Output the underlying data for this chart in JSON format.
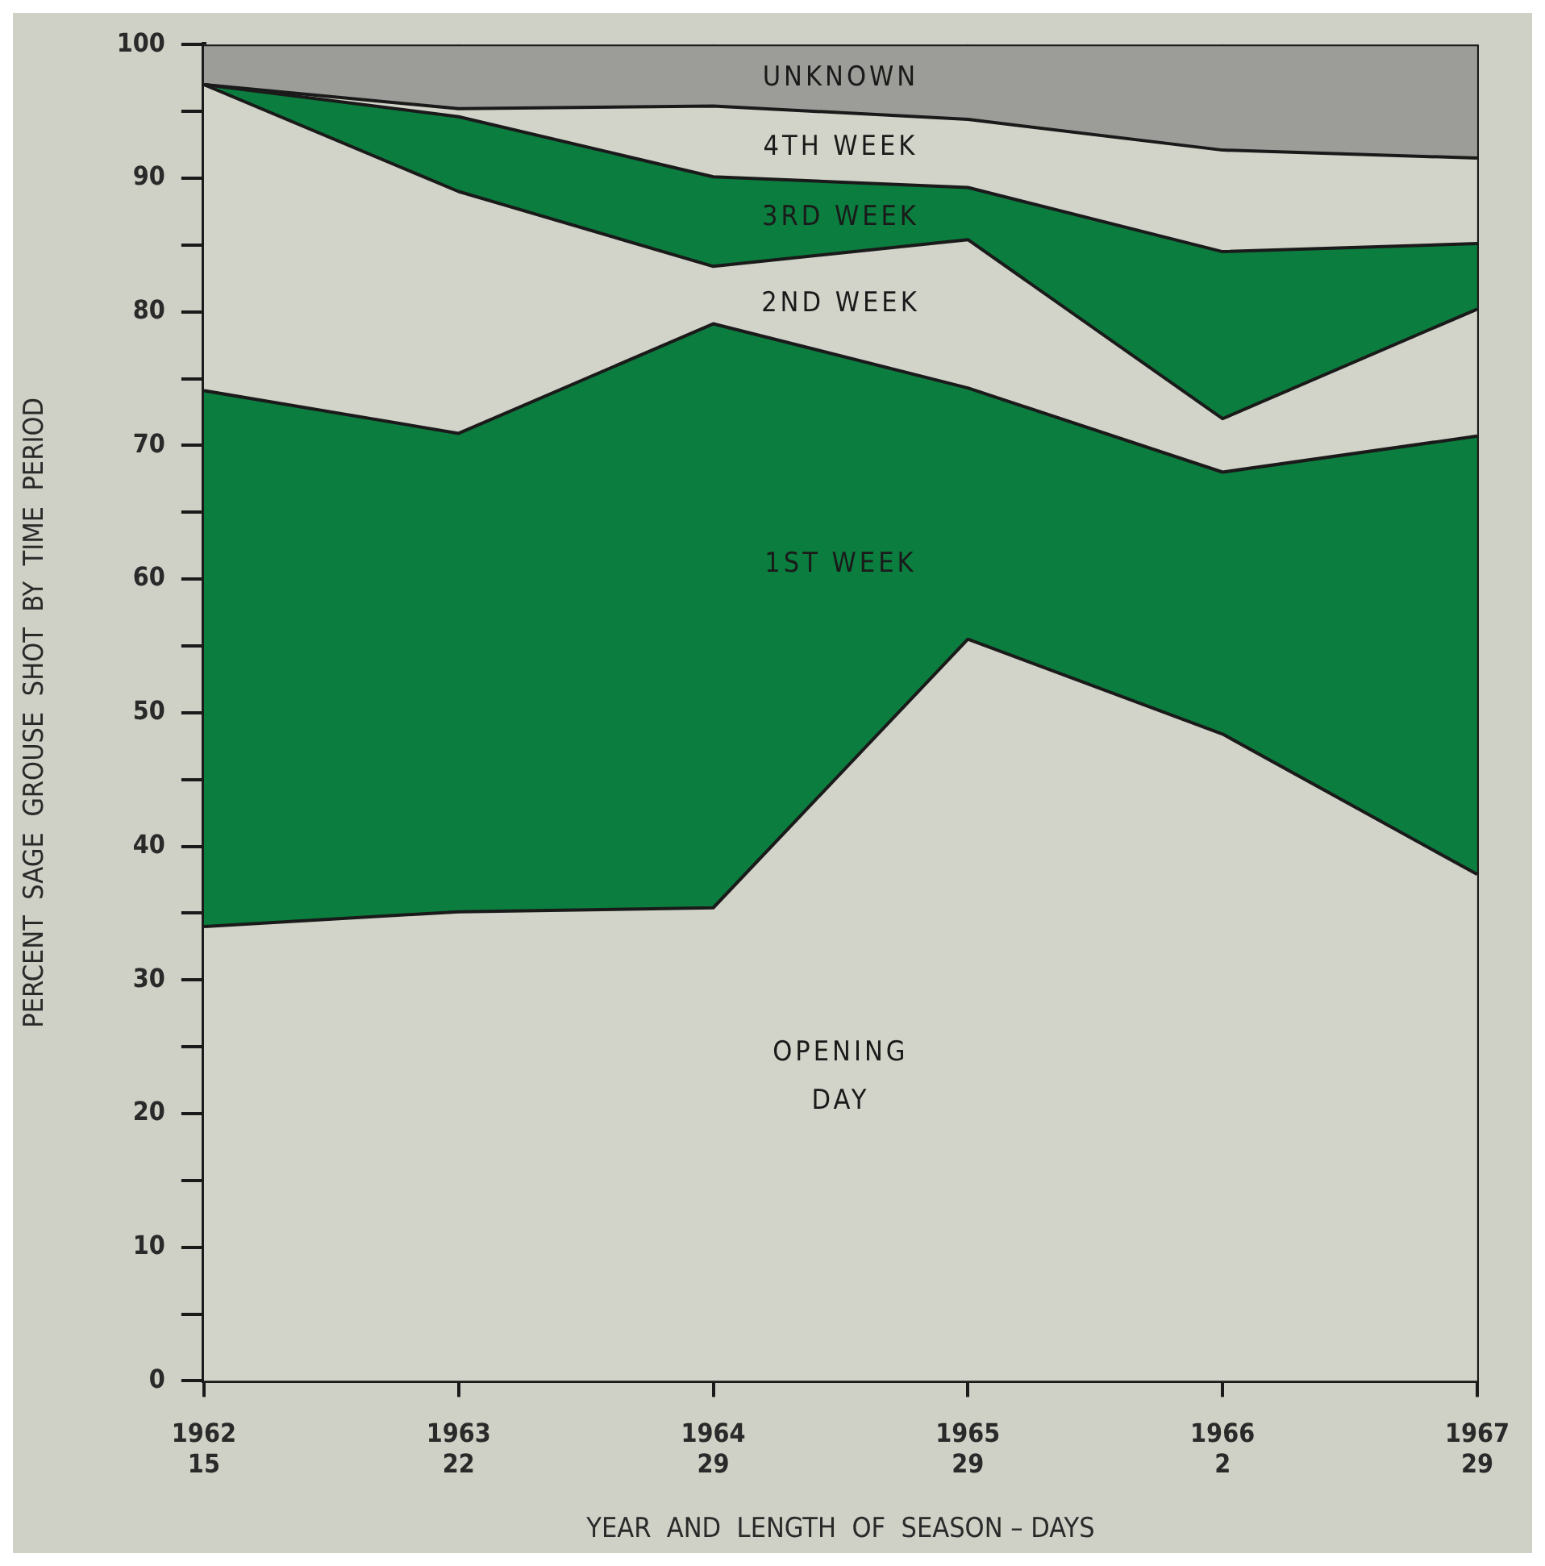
{
  "chart_data": {
    "type": "area",
    "stacked": true,
    "xlabel": "YEAR  AND  LENGTH  OF  SEASON – DAYS",
    "ylabel": "PERCENT  SAGE  GROUSE  SHOT  BY  TIME  PERIOD",
    "categories": [
      "1962\n15",
      "1963\n22",
      "1964\n29",
      "1965\n29",
      "1966\n2",
      "1967\n29"
    ],
    "series": [
      {
        "name": "OPENING DAY",
        "color": "#d2d4c9",
        "values": [
          34,
          35.1,
          35.4,
          55.5,
          48.4,
          37.9
        ]
      },
      {
        "name": "1ST WEEK",
        "color": "#0b7d3e",
        "values": [
          40.1,
          35.8,
          43.7,
          18.8,
          19.6,
          32.8
        ]
      },
      {
        "name": "2ND WEEK",
        "color": "#d2d4c9",
        "values": [
          22.9,
          18.1,
          4.3,
          11.1,
          4.0,
          9.5
        ]
      },
      {
        "name": "3RD WEEK",
        "color": "#0b7d3e",
        "values": [
          0,
          5.6,
          6.7,
          3.9,
          12.5,
          4.9
        ]
      },
      {
        "name": "4TH WEEK",
        "color": "#d2d4c9",
        "values": [
          0,
          0.6,
          5.3,
          5.1,
          7.6,
          6.4
        ]
      },
      {
        "name": "UNKNOWN",
        "color": "#9c9c98",
        "values": [
          3,
          4.8,
          4.6,
          5.6,
          7.9,
          8.5
        ]
      }
    ],
    "ylim": [
      0,
      100
    ],
    "yticks": [
      0,
      {
        "value": 5,
        "label": null
      },
      10,
      {
        "value": 15,
        "label": null
      },
      20,
      {
        "value": 25,
        "label": null
      },
      30,
      {
        "value": 35,
        "label": null
      },
      40,
      {
        "value": 45,
        "label": null
      },
      50,
      {
        "value": 55,
        "label": null
      },
      60,
      {
        "value": 65,
        "label": null
      },
      70,
      {
        "value": 75,
        "label": null
      },
      80,
      {
        "value": 85,
        "label": null
      },
      90,
      {
        "value": 95,
        "label": null
      },
      100
    ],
    "grid": "x",
    "legend": false
  }
}
